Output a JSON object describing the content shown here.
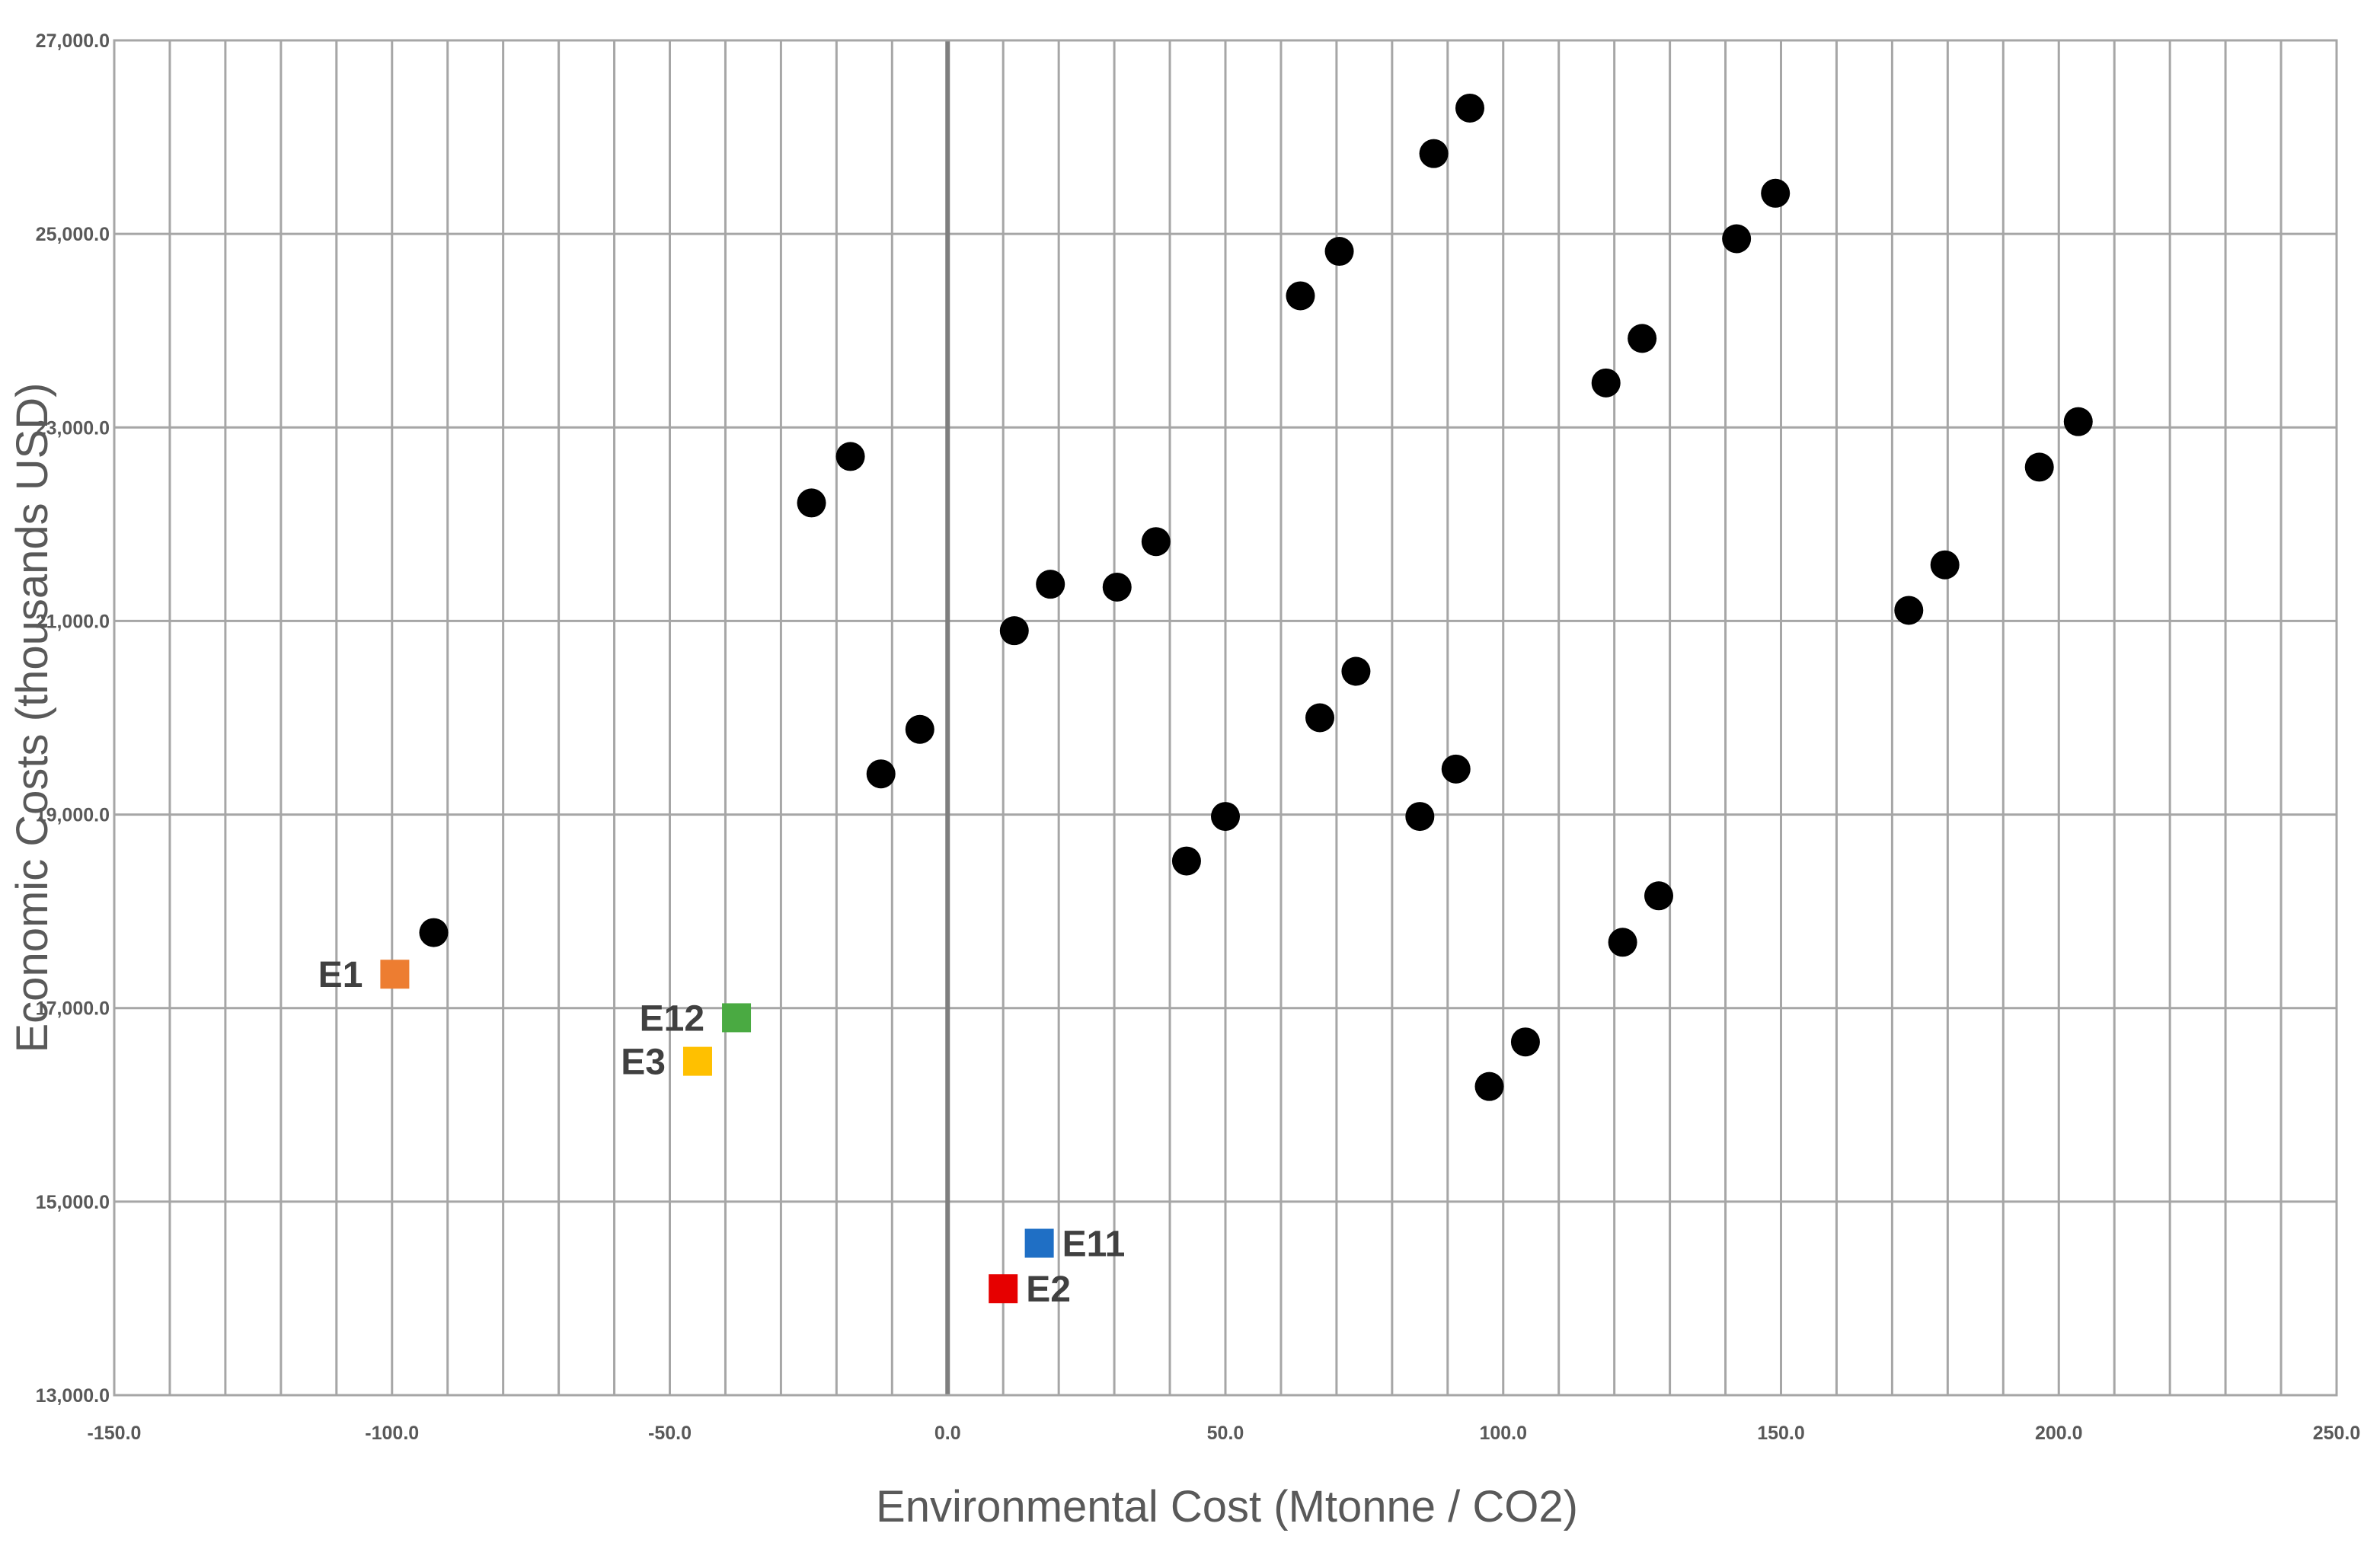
{
  "chart_data": {
    "type": "scatter",
    "title": "",
    "xlabel": "Environmental Cost (Mtonne  / CO2)",
    "ylabel": "Economic Costs (thousands  USD)",
    "xlim": [
      -150,
      250
    ],
    "ylim": [
      13000,
      27000
    ],
    "x_major_step": 50,
    "x_grid_step": 10,
    "y_major_step": 2000,
    "y_grid_step": 2000,
    "x_tick_labels": [
      "-150.0",
      "-100.0",
      "-50.0",
      "0.0",
      "50.0",
      "100.0",
      "150.0",
      "200.0",
      "250.0"
    ],
    "y_tick_labels": [
      "13,000.0",
      "15,000.0",
      "17,000.0",
      "19,000.0",
      "21,000.0",
      "23,000.0",
      "25,000.0",
      "27,000.0"
    ],
    "grid": true,
    "legend": "none",
    "marker_color": "#000000",
    "points": [
      {
        "x": -92.5,
        "y": 17780
      },
      {
        "x": -24.5,
        "y": 22220
      },
      {
        "x": -17.5,
        "y": 22700
      },
      {
        "x": -12,
        "y": 19420
      },
      {
        "x": -5,
        "y": 19880
      },
      {
        "x": 12,
        "y": 20900
      },
      {
        "x": 18.5,
        "y": 21380
      },
      {
        "x": 30.5,
        "y": 21350
      },
      {
        "x": 37.5,
        "y": 21820
      },
      {
        "x": 43,
        "y": 18520
      },
      {
        "x": 50,
        "y": 18980
      },
      {
        "x": 63.5,
        "y": 24360
      },
      {
        "x": 70.5,
        "y": 24820
      },
      {
        "x": 67,
        "y": 20000
      },
      {
        "x": 73.5,
        "y": 20480
      },
      {
        "x": 87.5,
        "y": 25830
      },
      {
        "x": 94,
        "y": 26300
      },
      {
        "x": 85,
        "y": 18980
      },
      {
        "x": 91.5,
        "y": 19470
      },
      {
        "x": 97.5,
        "y": 16190
      },
      {
        "x": 104,
        "y": 16650
      },
      {
        "x": 118.5,
        "y": 23460
      },
      {
        "x": 125,
        "y": 23920
      },
      {
        "x": 121.5,
        "y": 17680
      },
      {
        "x": 128,
        "y": 18160
      },
      {
        "x": 142,
        "y": 24950
      },
      {
        "x": 149,
        "y": 25420
      },
      {
        "x": 173,
        "y": 21110
      },
      {
        "x": 179.5,
        "y": 21580
      },
      {
        "x": 196.5,
        "y": 22590
      },
      {
        "x": 203.5,
        "y": 23060
      }
    ],
    "highlighted": [
      {
        "label": "E1",
        "x": -99.5,
        "y": 17350,
        "color": "#ed7d31",
        "label_side": "left"
      },
      {
        "label": "E12",
        "x": -38,
        "y": 16900,
        "color": "#4aaa42",
        "label_side": "left"
      },
      {
        "label": "E3",
        "x": -45,
        "y": 16450,
        "color": "#ffc000",
        "label_side": "left"
      },
      {
        "label": "E11",
        "x": 16.5,
        "y": 14570,
        "color": "#1f6fc5",
        "label_side": "right"
      },
      {
        "label": "E2",
        "x": 10,
        "y": 14100,
        "color": "#e60000",
        "label_side": "right"
      }
    ]
  }
}
